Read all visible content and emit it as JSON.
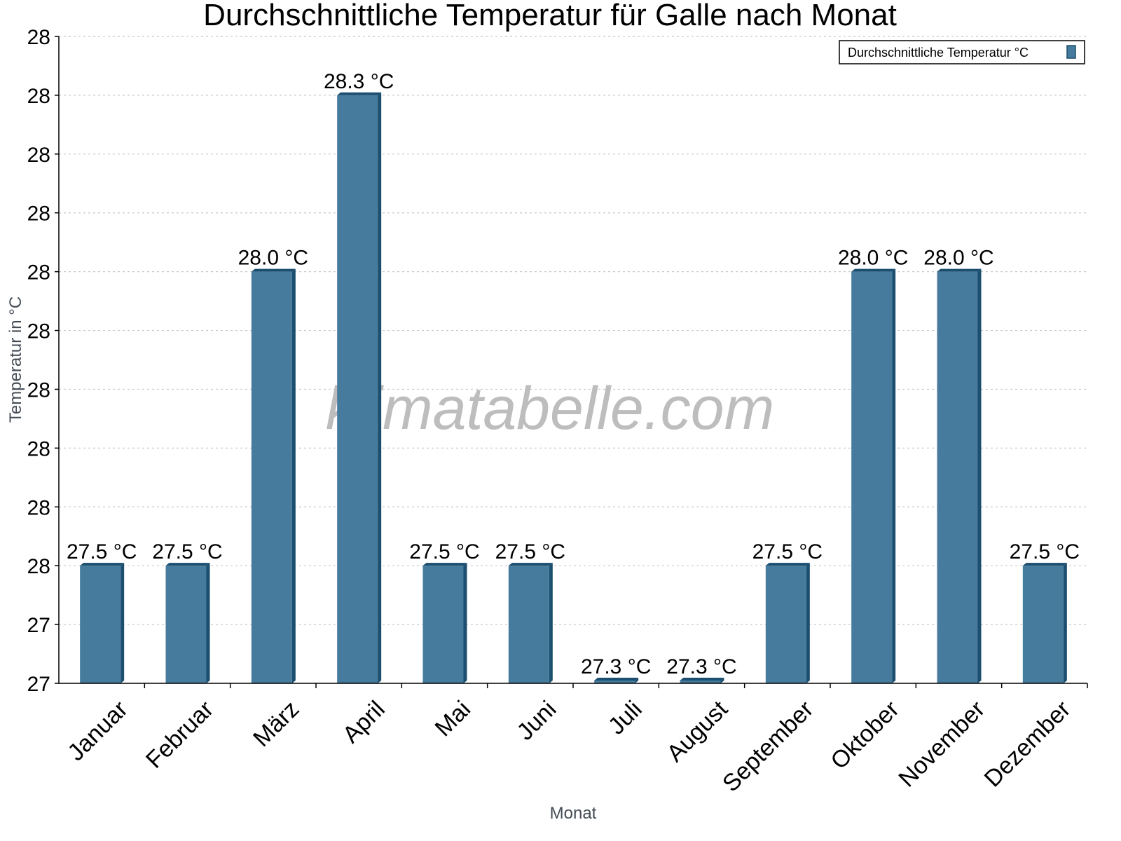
{
  "chart_data": {
    "type": "bar",
    "title": "Durchschnittliche Temperatur für Galle nach Monat",
    "xlabel": "Monat",
    "ylabel": "Temperatur in °C",
    "categories": [
      "Januar",
      "Februar",
      "März",
      "April",
      "Mai",
      "Juni",
      "Juli",
      "August",
      "September",
      "Oktober",
      "November",
      "Dezember"
    ],
    "series": [
      {
        "name": "Durchschnittliche Temperatur °C",
        "values": [
          27.5,
          27.5,
          28.0,
          28.3,
          27.5,
          27.5,
          27.3,
          27.3,
          27.5,
          28.0,
          28.0,
          27.5
        ],
        "color": "#467b9d"
      }
    ],
    "value_labels": [
      "27.5 °C",
      "27.5 °C",
      "28.0 °C",
      "28.3 °C",
      "27.5 °C",
      "27.5 °C",
      "27.3 °C",
      "27.3 °C",
      "27.5 °C",
      "28.0 °C",
      "28.0 °C",
      "27.5 °C"
    ],
    "ytick_labels": [
      "27",
      "27",
      "28",
      "28",
      "28",
      "28",
      "28",
      "28",
      "28",
      "28",
      "28",
      "28"
    ],
    "ylim": [
      27.3,
      28.4
    ],
    "grid": true,
    "legend_position": "top-right",
    "watermark": "klimatabelle.com"
  },
  "colors": {
    "bar_front": "#467b9d",
    "bar_side": "#1b4e6f",
    "grid": "#c8c8c8",
    "axis": "#000000"
  }
}
